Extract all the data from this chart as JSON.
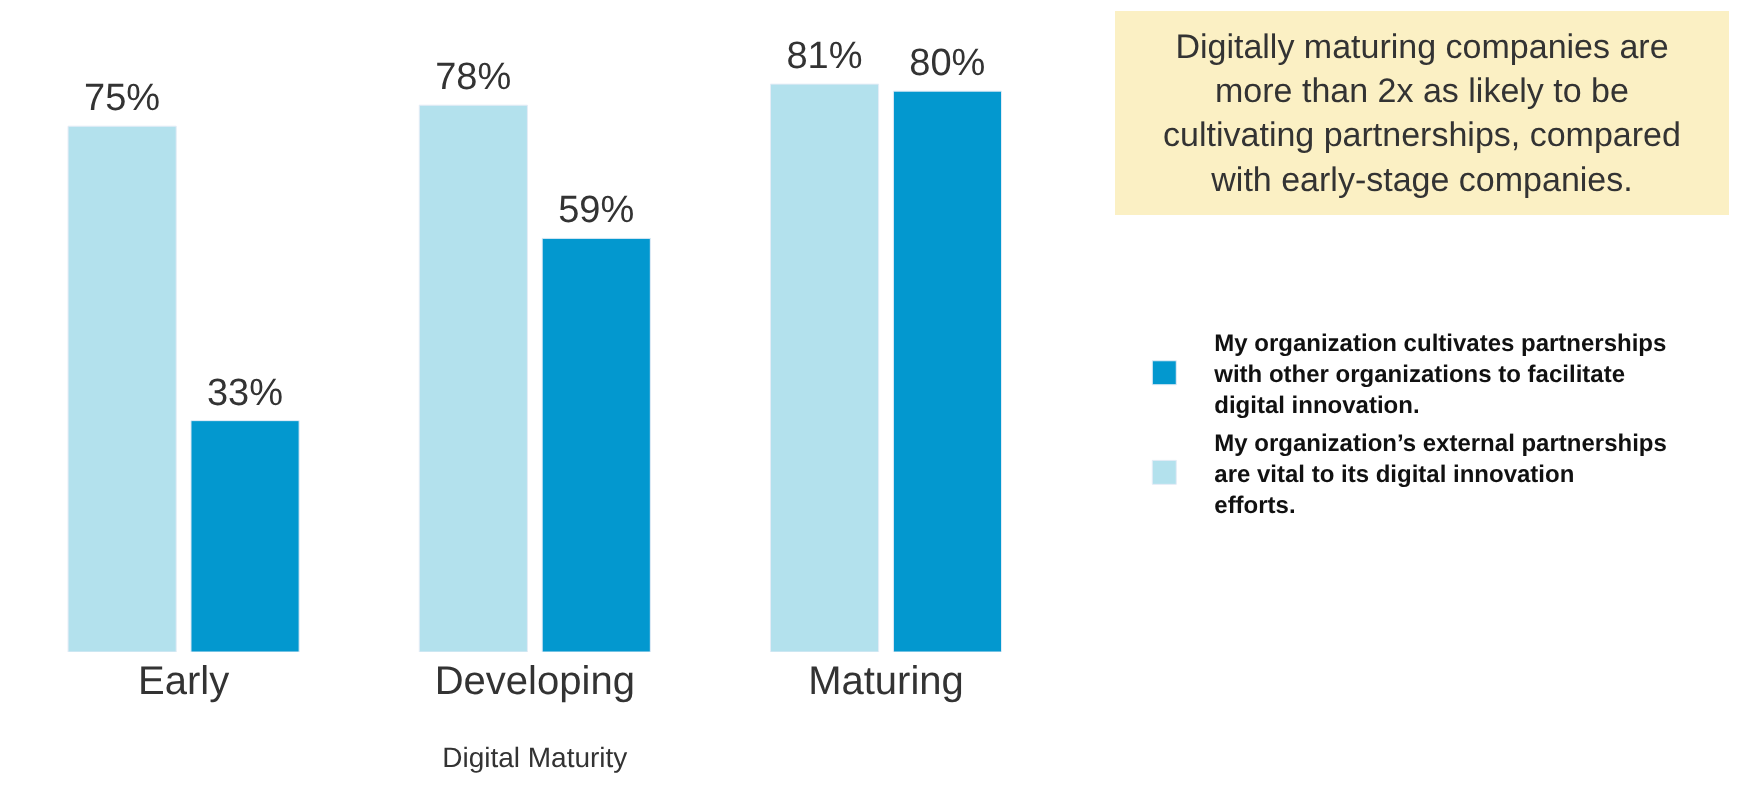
{
  "chart_data": {
    "type": "bar",
    "xlabel": "Digital Maturity",
    "categories": [
      "Early",
      "Developing",
      "Maturing"
    ],
    "series": [
      {
        "name": "My organization’s external partnerships are vital to its digital innovation efforts.",
        "color": "#b3e1ed",
        "values": [
          75,
          78,
          81
        ],
        "value_labels": [
          "75%",
          "78%",
          "81%"
        ]
      },
      {
        "name": "My organization cultivates partnerships with other organizations to facilitate digital innovation.",
        "color": "#0398cf",
        "values": [
          33,
          59,
          80
        ],
        "value_labels": [
          "33%",
          "59%",
          "80%"
        ]
      }
    ],
    "ylim": [
      0,
      93
    ],
    "tick_labels": "x",
    "legend": "right",
    "annotations": [
      "Digitally maturing companies are more than 2x as likely to be cultivating partnerships, compared with early-stage companies."
    ]
  }
}
